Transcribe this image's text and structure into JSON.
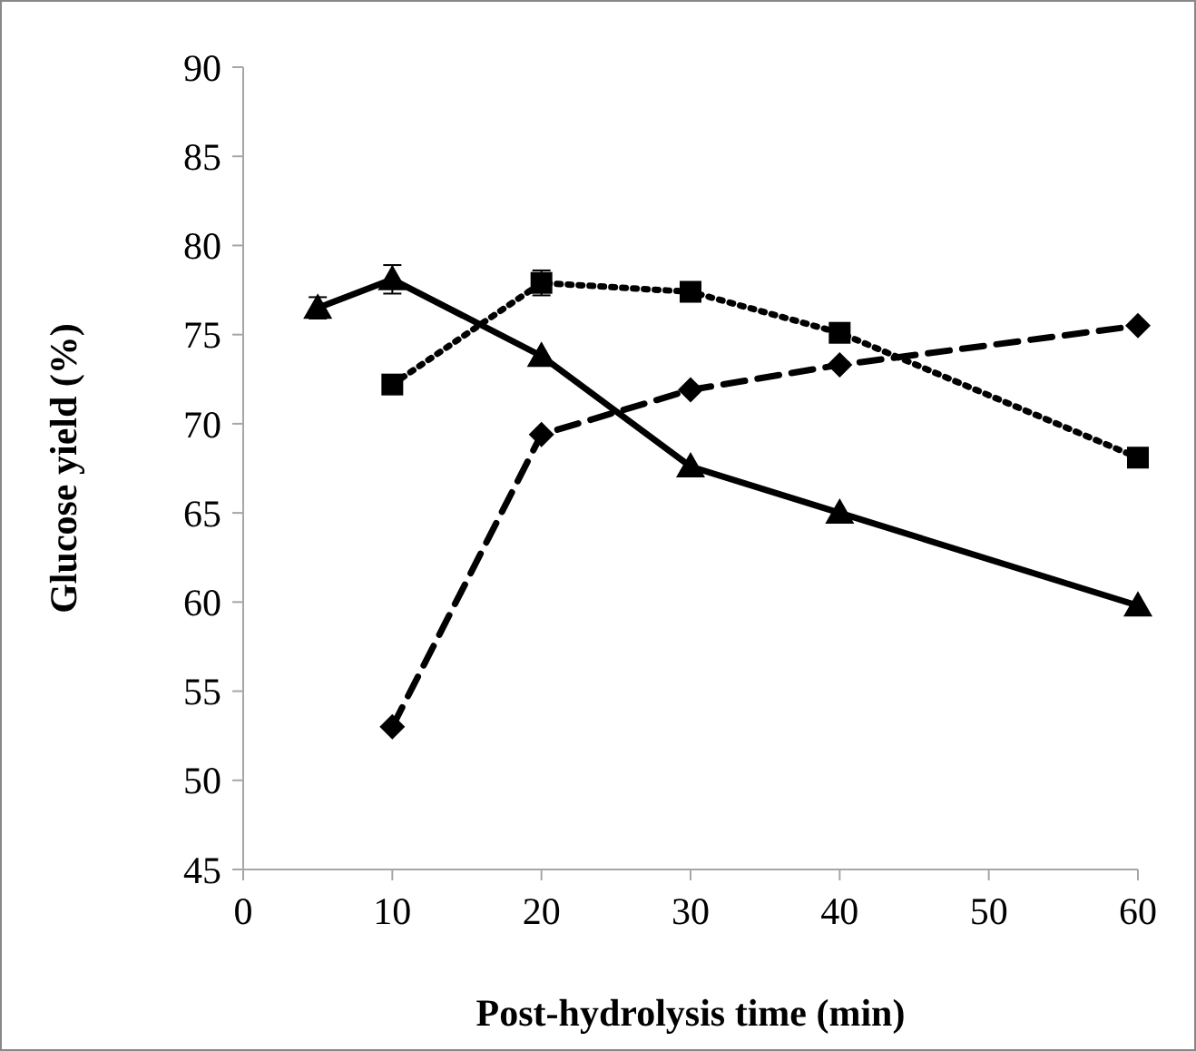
{
  "chart_data": {
    "type": "line",
    "xlabel": "Post-hydrolysis time (min)",
    "ylabel": "Glucose yield (%)",
    "xlim": [
      0,
      60
    ],
    "xticks": [
      0,
      10,
      20,
      30,
      40,
      50,
      60
    ],
    "ylim": [
      45,
      90
    ],
    "yticks": [
      45,
      50,
      55,
      60,
      65,
      70,
      75,
      80,
      85,
      90
    ],
    "series": [
      {
        "color": "#000000",
        "marker": "triangle",
        "line_style": "solid",
        "x": [
          5,
          10,
          20,
          30,
          40,
          60
        ],
        "values": [
          76.5,
          78.1,
          73.8,
          67.6,
          65.0,
          59.8
        ],
        "errors": [
          0.6,
          0.8,
          null,
          null,
          null,
          null
        ]
      },
      {
        "color": "#000000",
        "marker": "square",
        "line_style": "dotted",
        "x": [
          10,
          20,
          30,
          40,
          60
        ],
        "values": [
          72.2,
          77.9,
          77.4,
          75.1,
          68.1
        ],
        "errors": [
          null,
          0.7,
          null,
          null,
          null
        ]
      },
      {
        "color": "#000000",
        "marker": "diamond",
        "line_style": "dashed",
        "x": [
          10,
          20,
          30,
          40,
          60
        ],
        "values": [
          53.0,
          69.4,
          71.9,
          73.3,
          75.5
        ]
      }
    ]
  }
}
